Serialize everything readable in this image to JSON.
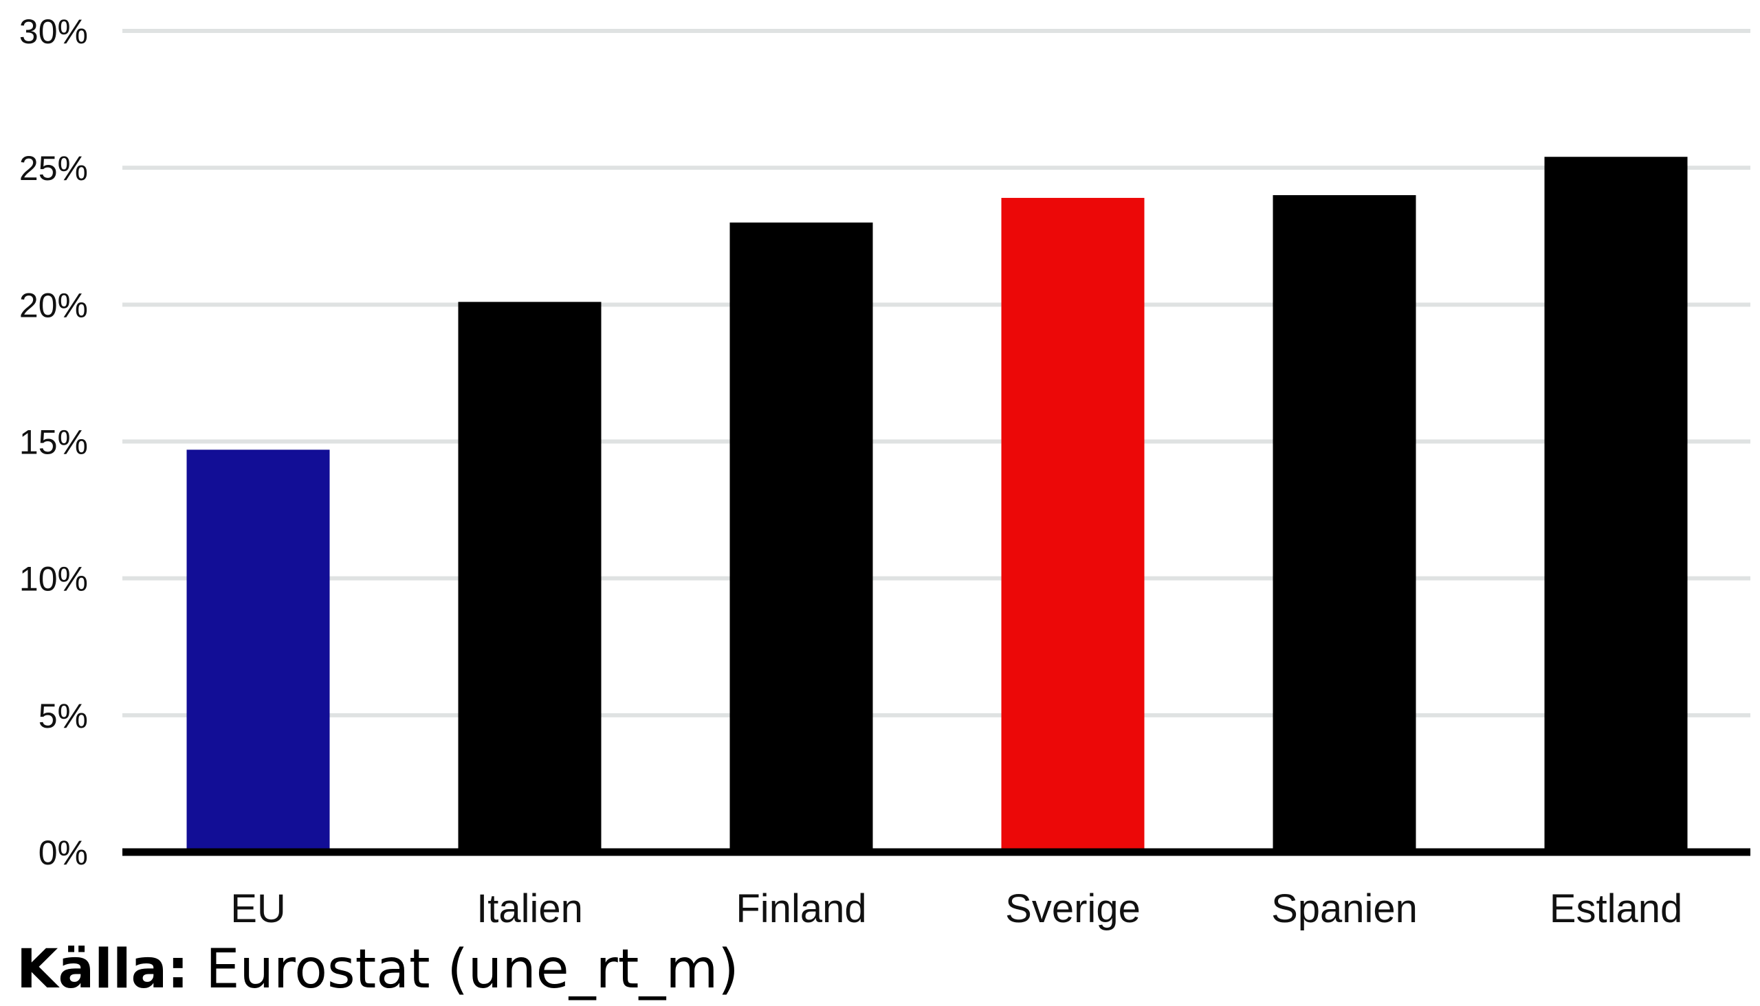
{
  "chart_data": {
    "type": "bar",
    "categories": [
      "EU",
      "Italien",
      "Finland",
      "Sverige",
      "Spanien",
      "Estland"
    ],
    "values": [
      14.7,
      20.1,
      23.0,
      23.9,
      24.0,
      25.4
    ],
    "bar_colors": [
      "#120e96",
      "#000000",
      "#000000",
      "#ec0808",
      "#000000",
      "#000000"
    ],
    "y_ticks": [
      0,
      5,
      10,
      15,
      20,
      25,
      30
    ],
    "y_tick_labels": [
      "0%",
      "5%",
      "10%",
      "15%",
      "20%",
      "25%",
      "30%"
    ],
    "ylim": [
      0,
      30
    ],
    "grid": true,
    "grid_color": "#dfe2e2",
    "axis_color": "#000000",
    "title": "",
    "xlabel": "",
    "ylabel": ""
  },
  "source": {
    "label": "Källa:",
    "text": " Eurostat (une_rt_m)"
  }
}
